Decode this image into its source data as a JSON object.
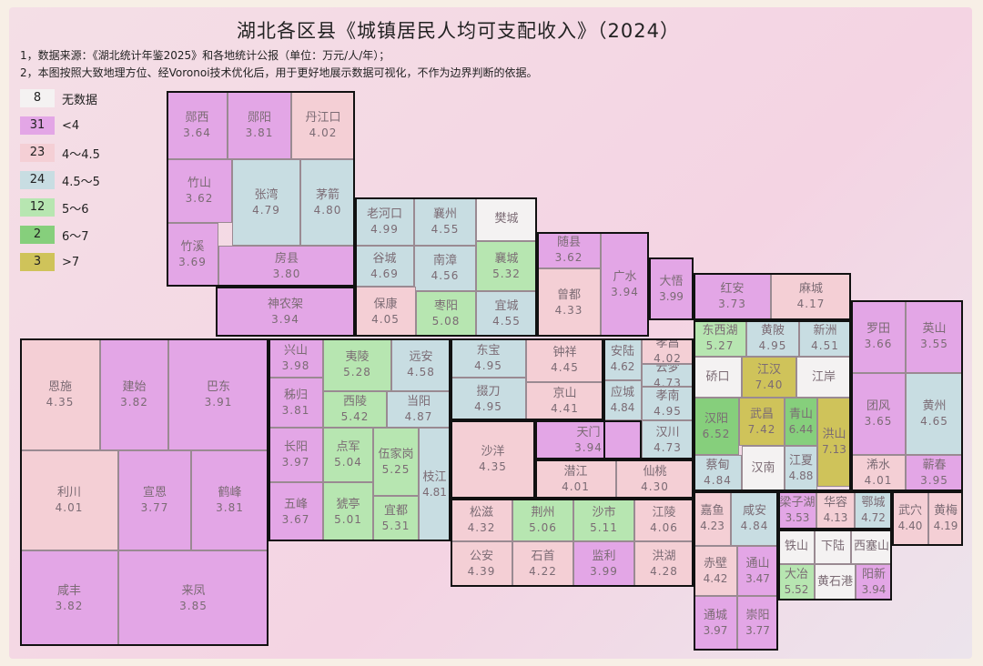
{
  "title": "湖北各区县《城镇居民人均可支配收入》（2024）",
  "notes": [
    "1，数据来源：《湖北统计年鉴2025》和各地统计公报（单位：万元/人/年）；",
    "2，本图按照大致地理方位、经Voronoi技术优化后，用于更好地展示数据可视化，不作为边界判断的依据。"
  ],
  "colors": {
    "nodata": "#f4f2f2",
    "lt4": "#e3a6e6",
    "4-4.5": "#f4cfd5",
    "4.5-5": "#c8dde2",
    "5-6": "#b7e6b1",
    "6-7": "#86cf7c",
    "gt7": "#cfc35a"
  },
  "legend": [
    {
      "count": "8",
      "label": "无数据",
      "cls": "nodata"
    },
    {
      "count": "31",
      "label": "<4",
      "cls": "lt4"
    },
    {
      "count": "23",
      "label": "4～4.5",
      "cls": "4-4.5"
    },
    {
      "count": "24",
      "label": "4.5～5",
      "cls": "4.5-5"
    },
    {
      "count": "12",
      "label": "5～6",
      "cls": "5-6"
    },
    {
      "count": "2",
      "label": "6～7",
      "cls": "6-7"
    },
    {
      "count": "3",
      "label": ">7",
      "cls": "gt7"
    }
  ],
  "regions": [
    {
      "name": "郧西",
      "value": "3.64"
    },
    {
      "name": "郧阳",
      "value": "3.81"
    },
    {
      "name": "丹江口",
      "value": "4.02"
    },
    {
      "name": "竹山",
      "value": "3.62"
    },
    {
      "name": "张湾",
      "value": "4.79"
    },
    {
      "name": "茅箭",
      "value": "4.80"
    },
    {
      "name": "竹溪",
      "value": "3.69"
    },
    {
      "name": "房县",
      "value": "3.80"
    },
    {
      "name": "神农架",
      "value": "3.94"
    },
    {
      "name": "老河口",
      "value": "4.99"
    },
    {
      "name": "襄州",
      "value": "4.55"
    },
    {
      "name": "樊城",
      "value": ""
    },
    {
      "name": "谷城",
      "value": "4.69"
    },
    {
      "name": "南漳",
      "value": "4.56"
    },
    {
      "name": "襄城",
      "value": "5.32"
    },
    {
      "name": "保康",
      "value": "4.05"
    },
    {
      "name": "枣阳",
      "value": "5.08"
    },
    {
      "name": "宜城",
      "value": "4.55"
    },
    {
      "name": "随县",
      "value": "3.62"
    },
    {
      "name": "广水",
      "value": "3.94"
    },
    {
      "name": "曾都",
      "value": "4.33"
    },
    {
      "name": "大悟",
      "value": "3.99"
    },
    {
      "name": "红安",
      "value": "3.73"
    },
    {
      "name": "麻城",
      "value": "4.17"
    },
    {
      "name": "罗田",
      "value": "3.66"
    },
    {
      "name": "英山",
      "value": "3.55"
    },
    {
      "name": "团风",
      "value": "3.65"
    },
    {
      "name": "黄州",
      "value": "4.65"
    },
    {
      "name": "浠水",
      "value": "4.01"
    },
    {
      "name": "蕲春",
      "value": "3.95"
    },
    {
      "name": "武穴",
      "value": "4.40"
    },
    {
      "name": "黄梅",
      "value": "4.19"
    },
    {
      "name": "恩施",
      "value": "4.35"
    },
    {
      "name": "建始",
      "value": "3.82"
    },
    {
      "name": "巴东",
      "value": "3.91"
    },
    {
      "name": "利川",
      "value": "4.01"
    },
    {
      "name": "宣恩",
      "value": "3.77"
    },
    {
      "name": "鹤峰",
      "value": "3.81"
    },
    {
      "name": "咸丰",
      "value": "3.82"
    },
    {
      "name": "来凤",
      "value": "3.85"
    },
    {
      "name": "兴山",
      "value": "3.98"
    },
    {
      "name": "夷陵",
      "value": "5.28"
    },
    {
      "name": "远安",
      "value": "4.58"
    },
    {
      "name": "秭归",
      "value": "3.81"
    },
    {
      "name": "西陵",
      "value": "5.42"
    },
    {
      "name": "当阳",
      "value": "4.87"
    },
    {
      "name": "长阳",
      "value": "3.97"
    },
    {
      "name": "点军",
      "value": "5.04"
    },
    {
      "name": "伍家岗",
      "value": "5.25"
    },
    {
      "name": "枝江",
      "value": "4.81"
    },
    {
      "name": "五峰",
      "value": "3.67"
    },
    {
      "name": "猇亭",
      "value": "5.01"
    },
    {
      "name": "宜都",
      "value": "5.31"
    },
    {
      "name": "东宝",
      "value": "4.95"
    },
    {
      "name": "钟祥",
      "value": "4.45"
    },
    {
      "name": "掇刀",
      "value": "4.95"
    },
    {
      "name": "京山",
      "value": "4.41"
    },
    {
      "name": "沙洋",
      "value": "4.35"
    },
    {
      "name": "天门",
      "value": "3.94"
    },
    {
      "name": "潜江",
      "value": "4.01"
    },
    {
      "name": "仙桃",
      "value": "4.30"
    },
    {
      "name": "安陆",
      "value": "4.62"
    },
    {
      "name": "孝昌",
      "value": "4.02"
    },
    {
      "name": "云梦",
      "value": "4.73"
    },
    {
      "name": "应城",
      "value": "4.84"
    },
    {
      "name": "孝南",
      "value": "4.95"
    },
    {
      "name": "汉川",
      "value": "4.73"
    },
    {
      "name": "松滋",
      "value": "4.32"
    },
    {
      "name": "荆州",
      "value": "5.06"
    },
    {
      "name": "沙市",
      "value": "5.11"
    },
    {
      "name": "江陵",
      "value": "4.06"
    },
    {
      "name": "公安",
      "value": "4.39"
    },
    {
      "name": "石首",
      "value": "4.22"
    },
    {
      "name": "监利",
      "value": "3.99"
    },
    {
      "name": "洪湖",
      "value": "4.28"
    },
    {
      "name": "东西湖",
      "value": "5.27"
    },
    {
      "name": "黄陂",
      "value": "4.95"
    },
    {
      "name": "新洲",
      "value": "4.51"
    },
    {
      "name": "硚口",
      "value": ""
    },
    {
      "name": "江汉",
      "value": "7.40"
    },
    {
      "name": "江岸",
      "value": ""
    },
    {
      "name": "汉阳",
      "value": "6.52"
    },
    {
      "name": "武昌",
      "value": "7.42"
    },
    {
      "name": "青山",
      "value": "6.44"
    },
    {
      "name": "洪山",
      "value": "7.13"
    },
    {
      "name": "蔡甸",
      "value": "4.84"
    },
    {
      "name": "汉南",
      "value": ""
    },
    {
      "name": "江夏",
      "value": "4.88"
    },
    {
      "name": "嘉鱼",
      "value": "4.23"
    },
    {
      "name": "咸安",
      "value": "4.84"
    },
    {
      "name": "赤壁",
      "value": "4.42"
    },
    {
      "name": "通山",
      "value": "3.47"
    },
    {
      "name": "通城",
      "value": "3.97"
    },
    {
      "name": "崇阳",
      "value": "3.77"
    },
    {
      "name": "梁子湖",
      "value": "3.53"
    },
    {
      "name": "华容",
      "value": "4.13"
    },
    {
      "name": "鄂城",
      "value": "4.72"
    },
    {
      "name": "铁山",
      "value": ""
    },
    {
      "name": "下陆",
      "value": ""
    },
    {
      "name": "西塞山",
      "value": ""
    },
    {
      "name": "大冶",
      "value": "5.52"
    },
    {
      "name": "黄石港",
      "value": ""
    },
    {
      "name": "阳新",
      "value": "3.94"
    }
  ]
}
